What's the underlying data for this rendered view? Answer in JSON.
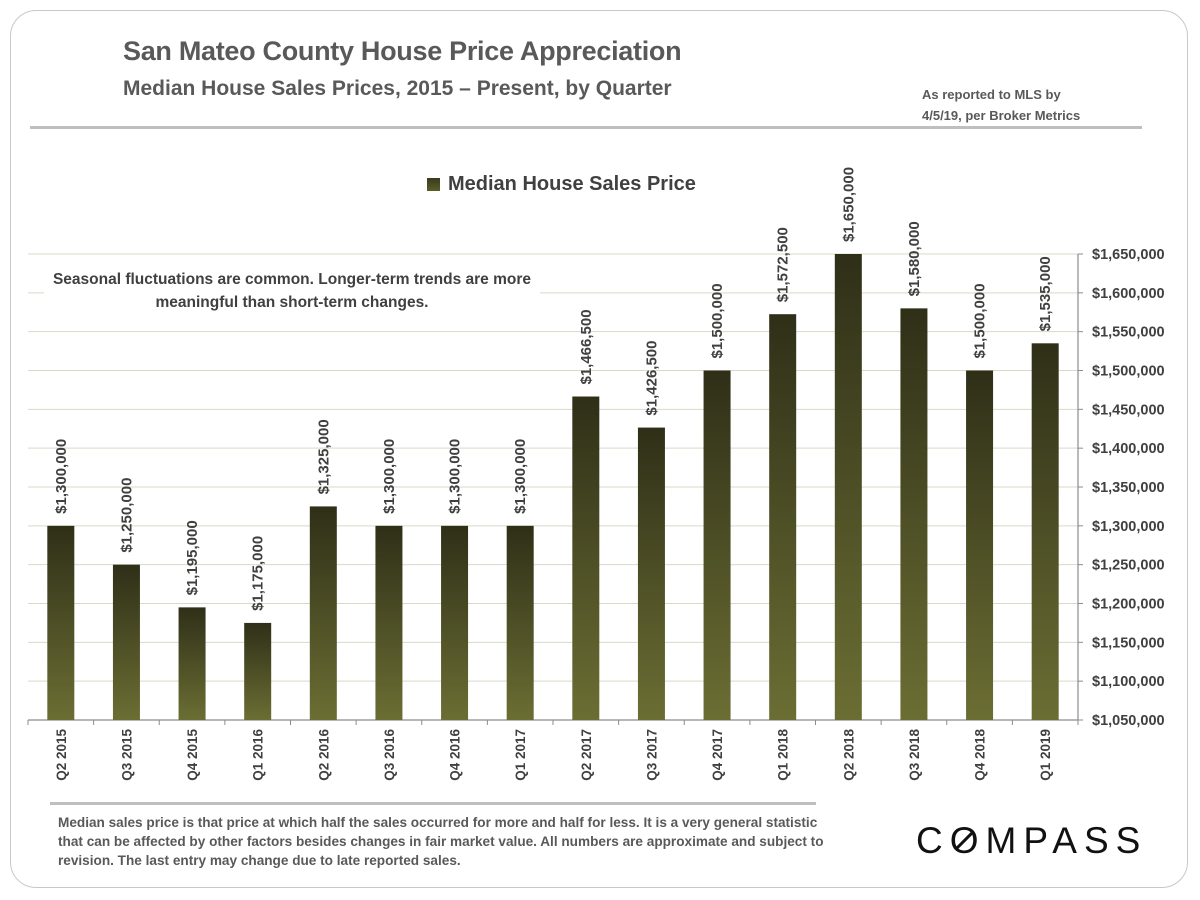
{
  "header": {
    "title": "San Mateo County House Price Appreciation",
    "subtitle": "Median House Sales Prices, 2015 – Present, by Quarter",
    "source_line1": "As reported to MLS by",
    "source_line2": "4/5/19, per Broker Metrics"
  },
  "note": "Seasonal fluctuations are common. Longer-term trends are more meaningful than short-term changes.",
  "footnote": "Median sales price is that price at which half the sales occurred for more and half for less. It is a very general statistic that can be affected by other factors besides changes in fair market value. All numbers are approximate and subject to revision. The last entry may change due to late reported sales.",
  "logo": "COMPASS",
  "colors": {
    "bar_top": "#2f2f18",
    "bar_bottom": "#6b6e33",
    "text": "#595959",
    "grid": "#d9d9c6"
  },
  "chart_data": {
    "type": "bar",
    "categories": [
      "Q2 2015",
      "Q3 2015",
      "Q4 2015",
      "Q1 2016",
      "Q2 2016",
      "Q3 2016",
      "Q4 2016",
      "Q1 2017",
      "Q2 2017",
      "Q3 2017",
      "Q4 2017",
      "Q1 2018",
      "Q2 2018",
      "Q3 2018",
      "Q4 2018",
      "Q1 2019"
    ],
    "series": [
      {
        "name": "Median House Sales Price",
        "values": [
          1300000,
          1250000,
          1195000,
          1175000,
          1325000,
          1300000,
          1300000,
          1300000,
          1466500,
          1426500,
          1500000,
          1572500,
          1650000,
          1580000,
          1500000,
          1535000
        ],
        "labels": [
          "$1,300,000",
          "$1,250,000",
          "$1,195,000",
          "$1,175,000",
          "$1,325,000",
          "$1,300,000",
          "$1,300,000",
          "$1,300,000",
          "$1,466,500",
          "$1,426,500",
          "$1,500,000",
          "$1,572,500",
          "$1,650,000",
          "$1,580,000",
          "$1,500,000",
          "$1,535,000"
        ]
      }
    ],
    "ylim": [
      1050000,
      1650000
    ],
    "yticks": [
      1050000,
      1100000,
      1150000,
      1200000,
      1250000,
      1300000,
      1350000,
      1400000,
      1450000,
      1500000,
      1550000,
      1600000,
      1650000
    ],
    "ytick_labels": [
      "$1,050,000",
      "$1,100,000",
      "$1,150,000",
      "$1,200,000",
      "$1,250,000",
      "$1,300,000",
      "$1,350,000",
      "$1,400,000",
      "$1,450,000",
      "$1,500,000",
      "$1,550,000",
      "$1,600,000",
      "$1,650,000"
    ],
    "y_axis_side": "right",
    "grid": true,
    "legend": "top-center"
  }
}
